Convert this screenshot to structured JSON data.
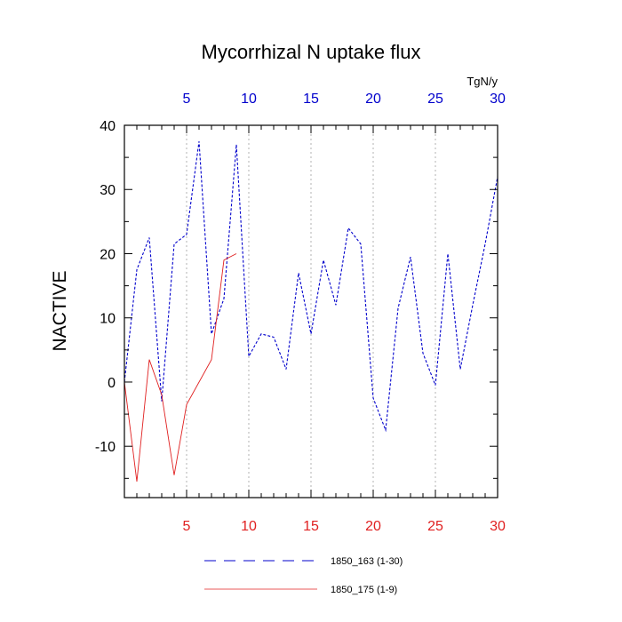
{
  "chart_data": {
    "type": "line",
    "title": "Mycorrhizal N uptake flux",
    "ylabel": "NACTIVE",
    "units_label": "TgN/y",
    "xlim": [
      0,
      30
    ],
    "ylim": [
      -18,
      40
    ],
    "yticks": [
      -10,
      0,
      10,
      20,
      30,
      40
    ],
    "xticks": [
      5,
      10,
      15,
      20,
      25,
      30
    ],
    "grid_x": true,
    "legend_position": "bottom",
    "colors": {
      "series_a": "#0000cc",
      "series_b": "#e02020",
      "grid": "#a0a0a0"
    },
    "series": [
      {
        "name": "1850_163 (1-30)",
        "axis": "top",
        "style": "dashed",
        "x": [
          0,
          1,
          2,
          3,
          4,
          5,
          6,
          7,
          8,
          9,
          10,
          11,
          12,
          13,
          14,
          15,
          16,
          17,
          18,
          19,
          20,
          21,
          22,
          23,
          24,
          25,
          26,
          27,
          28,
          29,
          30
        ],
        "values": [
          0,
          17.5,
          22.5,
          -3,
          21.5,
          23,
          37.5,
          7.5,
          13,
          37,
          4,
          7.5,
          7,
          2,
          17,
          7.5,
          19,
          12,
          24,
          21.5,
          -2.5,
          -7.5,
          11.5,
          19.5,
          4.5,
          -0.5,
          20,
          2,
          12,
          21.5,
          32
        ]
      },
      {
        "name": "1850_175 (1-9)",
        "axis": "bottom",
        "style": "solid",
        "x": [
          0,
          1,
          2,
          3,
          4,
          5,
          6,
          7,
          8,
          9
        ],
        "values": [
          0,
          -15.5,
          3.5,
          -2,
          -14.5,
          -3.5,
          0,
          3.5,
          19,
          20
        ]
      }
    ]
  }
}
